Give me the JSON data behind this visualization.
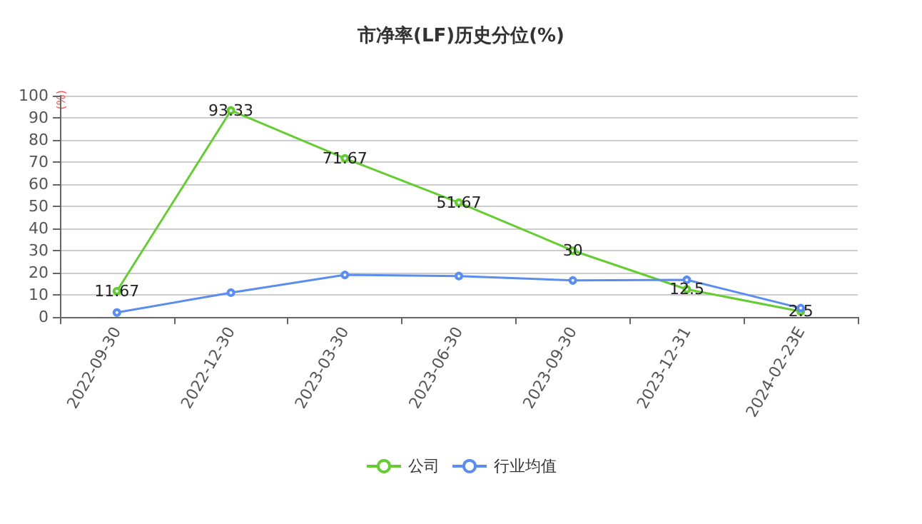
{
  "chart_data": {
    "type": "line",
    "title": "市净率(LF)历史分位(%)",
    "ylabel": "(%)",
    "categories": [
      "2022-09-30",
      "2022-12-30",
      "2023-03-30",
      "2023-06-30",
      "2023-09-30",
      "2023-12-31",
      "2024-02-23E"
    ],
    "series": [
      {
        "name": "公司",
        "color": "#66cc33",
        "values": [
          11.67,
          93.33,
          71.67,
          51.67,
          30,
          12.5,
          2.5
        ],
        "data_labels": true
      },
      {
        "name": "行业均值",
        "color": "#5b8def",
        "values": [
          2,
          11,
          19,
          18.5,
          16.5,
          16.8,
          4
        ]
      }
    ],
    "ylim": [
      0,
      100
    ],
    "yticks": [
      0,
      10,
      20,
      30,
      40,
      50,
      60,
      70,
      80,
      90,
      100
    ],
    "grid": "y",
    "legend": "bottom",
    "marker": "circle",
    "line_style": "solid"
  }
}
